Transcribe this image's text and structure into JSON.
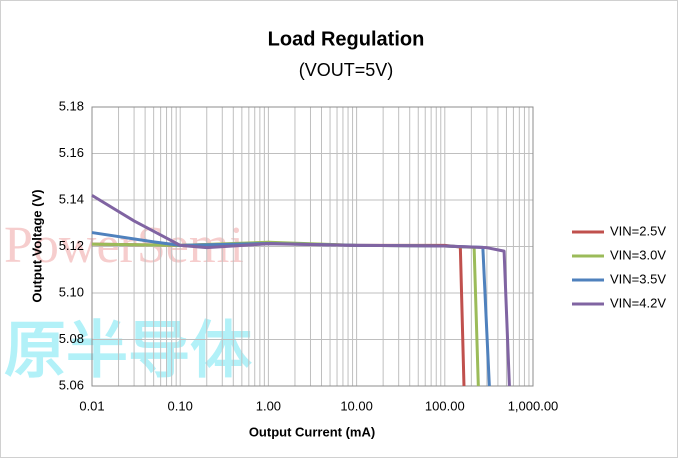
{
  "chart_data": {
    "type": "line",
    "title": "Load Regulation",
    "subtitle": "(VOUT=5V)",
    "xlabel": "Output Current (mA)",
    "ylabel": "Output Voltage (V)",
    "annotations": [
      "PowerSemi",
      "原半导体"
    ],
    "xlog": true,
    "grid": true,
    "legend": "right",
    "xlim": [
      0.01,
      1000
    ],
    "xticks": [
      {
        "value": 0.01,
        "label": "0.01"
      },
      {
        "value": 0.1,
        "label": "0.10"
      },
      {
        "value": 1,
        "label": "1.00"
      },
      {
        "value": 10,
        "label": "10.00"
      },
      {
        "value": 100,
        "label": "100.00"
      },
      {
        "value": 1000,
        "label": "1,000.00"
      }
    ],
    "xminorticks": [
      0.02,
      0.03,
      0.04,
      0.05,
      0.06,
      0.07,
      0.08,
      0.09,
      0.2,
      0.3,
      0.4,
      0.5,
      0.6,
      0.7,
      0.8,
      0.9,
      2,
      3,
      4,
      5,
      6,
      7,
      8,
      9,
      20,
      30,
      40,
      50,
      60,
      70,
      80,
      90,
      200,
      300,
      400,
      500,
      600,
      700,
      800,
      900
    ],
    "ylim": [
      5.06,
      5.18
    ],
    "yticks": [
      5.06,
      5.08,
      {
        "value": 5.1,
        "label": "5.10"
      },
      5.12,
      5.14,
      5.16,
      5.18
    ],
    "series": [
      {
        "name": "VIN=2.5V",
        "color": "#c0504d",
        "x": [
          0.01,
          0.1,
          1,
          10,
          100,
          150,
          165
        ],
        "values": [
          5.121,
          5.1205,
          5.1215,
          5.1205,
          5.1205,
          5.1198,
          5.06
        ]
      },
      {
        "name": "VIN=3.0V",
        "color": "#9bbb59",
        "x": [
          0.01,
          0.1,
          1,
          10,
          100,
          215,
          240
        ],
        "values": [
          5.121,
          5.1205,
          5.1218,
          5.1205,
          5.1202,
          5.1196,
          5.06
        ]
      },
      {
        "name": "VIN=3.5V",
        "color": "#4f81bd",
        "x": [
          0.01,
          0.05,
          0.1,
          1,
          10,
          100,
          270,
          320
        ],
        "values": [
          5.126,
          5.122,
          5.1205,
          5.1213,
          5.1205,
          5.1202,
          5.1196,
          5.06
        ]
      },
      {
        "name": "VIN=4.2V",
        "color": "#8064a2",
        "x": [
          0.01,
          0.03,
          0.1,
          0.2,
          1,
          10,
          100,
          300,
          470,
          540
        ],
        "values": [
          5.142,
          5.131,
          5.1205,
          5.1195,
          5.1212,
          5.1205,
          5.1202,
          5.1195,
          5.118,
          5.06
        ]
      }
    ]
  }
}
